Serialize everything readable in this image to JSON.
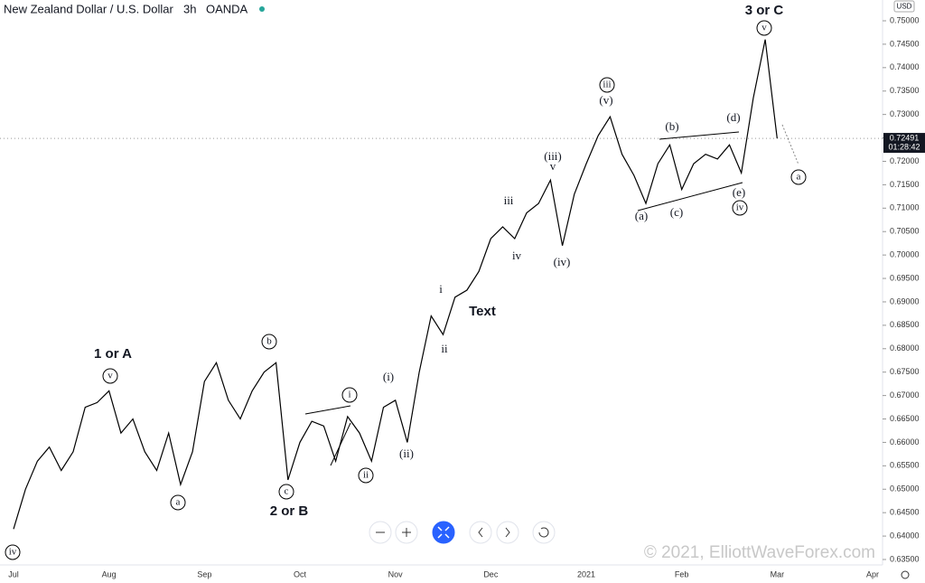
{
  "chart_data": {
    "type": "line",
    "title": "New Zealand Dollar / U.S. Dollar",
    "interval": "3h",
    "source": "OANDA",
    "currency": "USD",
    "last_price_label": "0.72491",
    "countdown": "01:28:42",
    "watermark": "© 2021, ElliottWaveForex.com",
    "categories": [
      "Jul",
      null,
      null,
      null,
      null,
      null,
      null,
      null,
      "Aug",
      null,
      null,
      null,
      null,
      null,
      null,
      null,
      "Sep",
      null,
      null,
      null,
      null,
      null,
      null,
      null,
      "Oct",
      null,
      null,
      null,
      null,
      null,
      null,
      null,
      "Nov",
      null,
      null,
      null,
      null,
      null,
      null,
      null,
      "Dec",
      null,
      null,
      null,
      null,
      null,
      null,
      null,
      "2021",
      null,
      null,
      null,
      null,
      null,
      null,
      null,
      "Feb",
      null,
      null,
      null,
      null,
      null,
      null,
      null,
      "Mar",
      null,
      null,
      null,
      null,
      null,
      null,
      null,
      "Apr"
    ],
    "series": [
      {
        "name": "NZDUSD",
        "color": "#000000",
        "values": [
          0.6415,
          0.65,
          0.656,
          0.659,
          0.654,
          0.658,
          0.6675,
          0.6685,
          0.671,
          0.662,
          0.665,
          0.658,
          0.654,
          0.662,
          0.651,
          0.658,
          0.673,
          0.677,
          0.669,
          0.665,
          0.671,
          0.675,
          0.677,
          0.652,
          0.66,
          0.6645,
          0.6635,
          0.656,
          0.6655,
          0.662,
          0.656,
          0.6675,
          0.669,
          0.66,
          0.675,
          0.687,
          0.683,
          0.691,
          0.6925,
          0.6965,
          0.7035,
          0.706,
          0.7035,
          0.709,
          0.711,
          0.716,
          0.702,
          0.713,
          0.7195,
          0.7255,
          0.7295,
          0.7215,
          0.717,
          0.711,
          0.7195,
          0.7235,
          0.714,
          0.7195,
          0.7215,
          0.7205,
          0.7235,
          0.7175,
          0.7335,
          0.746,
          0.7249,
          null,
          null,
          null,
          null,
          null,
          null,
          null,
          null
        ]
      }
    ],
    "ylim": [
      0.635,
      0.75
    ],
    "yticks": [
      {
        "value": 0.635,
        "label": "0.63500"
      },
      {
        "value": 0.64,
        "label": "0.64000"
      },
      {
        "value": 0.645,
        "label": "0.64500"
      },
      {
        "value": 0.65,
        "label": "0.65000"
      },
      {
        "value": 0.655,
        "label": "0.65500"
      },
      {
        "value": 0.66,
        "label": "0.66000"
      },
      {
        "value": 0.665,
        "label": "0.66500"
      },
      {
        "value": 0.67,
        "label": "0.67000"
      },
      {
        "value": 0.675,
        "label": "0.67500"
      },
      {
        "value": 0.68,
        "label": "0.68000"
      },
      {
        "value": 0.685,
        "label": "0.68500"
      },
      {
        "value": 0.69,
        "label": "0.69000"
      },
      {
        "value": 0.695,
        "label": "0.69500"
      },
      {
        "value": 0.7,
        "label": "0.70000"
      },
      {
        "value": 0.705,
        "label": "0.70500"
      },
      {
        "value": 0.71,
        "label": "0.71000"
      },
      {
        "value": 0.715,
        "label": "0.71500"
      },
      {
        "value": 0.72,
        "label": "0.72000"
      },
      {
        "value": 0.725,
        "label": "0.72500"
      },
      {
        "value": 0.73,
        "label": "0.73000"
      },
      {
        "value": 0.735,
        "label": "0.73500"
      },
      {
        "value": 0.74,
        "label": "0.74000"
      },
      {
        "value": 0.745,
        "label": "0.74500"
      },
      {
        "value": 0.75,
        "label": "0.75000"
      }
    ],
    "grid": false,
    "annotations": [
      {
        "text": "1 or A",
        "style": "bold"
      },
      {
        "text": "2 or B",
        "style": "bold"
      },
      {
        "text": "3 or C",
        "style": "bold"
      },
      {
        "text": "Text",
        "style": "bold"
      },
      {
        "text": "iv",
        "style": "circled"
      },
      {
        "text": "v",
        "style": "circled"
      },
      {
        "text": "a",
        "style": "circled"
      },
      {
        "text": "b",
        "style": "circled"
      },
      {
        "text": "c",
        "style": "circled"
      },
      {
        "text": "i",
        "style": "circled"
      },
      {
        "text": "ii",
        "style": "circled"
      },
      {
        "text": "iii",
        "style": "circled"
      },
      {
        "text": "v",
        "style": "circled"
      },
      {
        "text": "iv",
        "style": "circled"
      },
      {
        "text": "a",
        "style": "circled"
      },
      {
        "text": "(i)",
        "style": "plain"
      },
      {
        "text": "(ii)",
        "style": "plain"
      },
      {
        "text": "(iii)",
        "style": "plain"
      },
      {
        "text": "v",
        "style": "plain"
      },
      {
        "text": "(iv)",
        "style": "plain"
      },
      {
        "text": "(v)",
        "style": "plain"
      },
      {
        "text": "(a)",
        "style": "plain"
      },
      {
        "text": "(b)",
        "style": "plain"
      },
      {
        "text": "(c)",
        "style": "plain"
      },
      {
        "text": "(d)",
        "style": "plain"
      },
      {
        "text": "(e)",
        "style": "plain"
      },
      {
        "text": "i",
        "style": "plain"
      },
      {
        "text": "ii",
        "style": "plain"
      },
      {
        "text": "iii",
        "style": "plain"
      },
      {
        "text": "iv",
        "style": "plain"
      }
    ]
  }
}
